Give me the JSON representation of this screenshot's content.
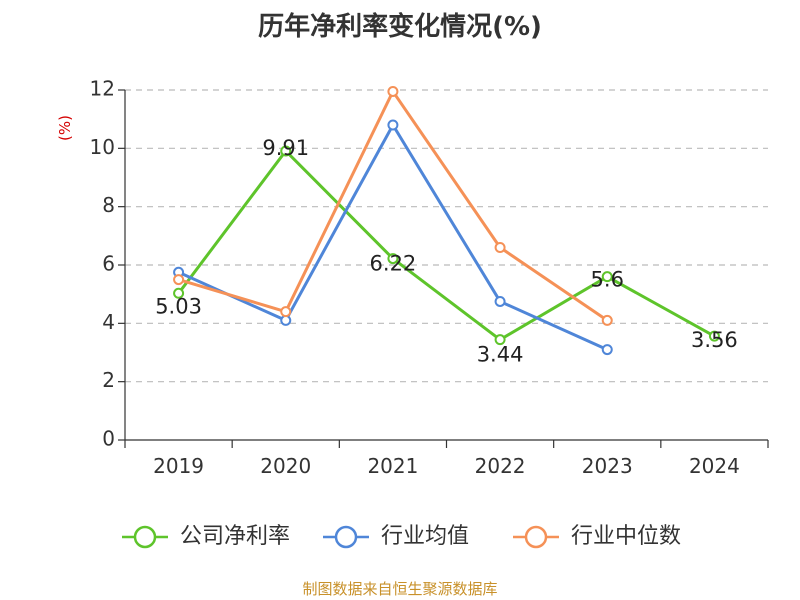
{
  "chart_data": {
    "type": "line",
    "title": "历年净利率变化情况(%)",
    "ylabel": "(%)",
    "categories": [
      "2019",
      "2020",
      "2021",
      "2022",
      "2023",
      "2024"
    ],
    "ylim": [
      0,
      12
    ],
    "yticks": [
      0,
      2,
      4,
      6,
      8,
      10,
      12
    ],
    "grid": true,
    "legend_position": "bottom",
    "series": [
      {
        "name": "公司净利率",
        "color": "#5ec42b",
        "values": [
          5.03,
          9.91,
          6.22,
          3.44,
          5.6,
          3.56
        ],
        "labels": [
          "5.03",
          "9.91",
          "6.22",
          "3.44",
          "5.6",
          "3.56"
        ]
      },
      {
        "name": "行业均值",
        "color": "#4f86d8",
        "values": [
          5.75,
          4.1,
          10.8,
          4.75,
          3.1,
          null
        ]
      },
      {
        "name": "行业中位数",
        "color": "#f59157",
        "values": [
          5.5,
          4.4,
          11.95,
          6.6,
          4.1,
          null
        ]
      }
    ]
  },
  "source": "制图数据来自恒生聚源数据库"
}
